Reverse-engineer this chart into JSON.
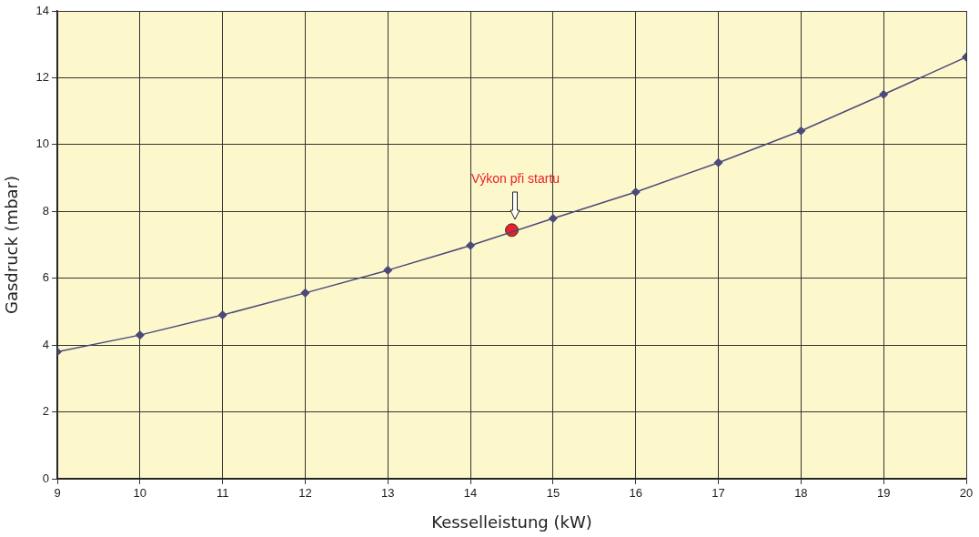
{
  "chart_data": {
    "type": "line",
    "xlabel": "Kesselleistung (kW)",
    "ylabel": "Gasdruck (mbar)",
    "x": [
      9,
      10,
      11,
      12,
      13,
      14,
      15,
      16,
      17,
      18,
      19,
      20
    ],
    "series": [
      {
        "color": "#4b4a7a",
        "values": [
          3.8,
          4.3,
          4.9,
          5.56,
          6.24,
          6.98,
          7.79,
          8.58,
          9.46,
          10.41,
          11.5,
          12.62
        ]
      },
      {
        "type": "scatter",
        "marker": "circle",
        "color": "#e8202a",
        "x": [
          14.5
        ],
        "values": [
          7.44
        ]
      }
    ],
    "xlim": [
      9,
      20
    ],
    "xticks": [
      9,
      10,
      11,
      12,
      13,
      14,
      15,
      16,
      17,
      18,
      19,
      20
    ],
    "ylim": [
      0,
      14
    ],
    "yticks": [
      0,
      2,
      4,
      6,
      8,
      10,
      12,
      14
    ],
    "grid": true,
    "legend": false,
    "marker": "diamond",
    "line_style": "solid",
    "annotations": [
      "Výkon při startu"
    ]
  }
}
